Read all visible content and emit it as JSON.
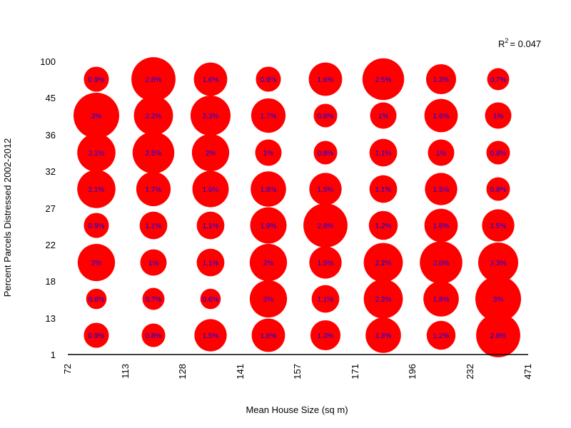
{
  "chart_data": {
    "type": "scatter",
    "subtype": "bubble-grid",
    "title": "",
    "xlabel": "Mean House Size (sq m)",
    "ylabel": "Percent Parcels Distressed 2002-2012",
    "x_ticks": [
      "72",
      "113",
      "128",
      "141",
      "157",
      "171",
      "196",
      "232",
      "471"
    ],
    "y_ticks": [
      "1",
      "13",
      "18",
      "22",
      "27",
      "32",
      "36",
      "45",
      "100"
    ],
    "annotation": {
      "prefix": "R",
      "superscript": "2",
      "suffix": "= 0.047"
    },
    "bubble_color": "#ff0000",
    "label_color": "#0000ff",
    "grid": false,
    "cells": [
      [
        0.9,
        0.6,
        2,
        0.9,
        2.1,
        2.1,
        3,
        0.9
      ],
      [
        0.8,
        0.7,
        1,
        1.1,
        1.7,
        2.5,
        2.2,
        2.8
      ],
      [
        1.5,
        0.6,
        1.1,
        1.1,
        1.9,
        2,
        2.3,
        1.6
      ],
      [
        1.6,
        2,
        2,
        1.9,
        1.8,
        1,
        1.7,
        0.9
      ],
      [
        1.3,
        1.1,
        1.5,
        2.8,
        1.5,
        0.8,
        0.8,
        1.6
      ],
      [
        1.8,
        2.2,
        2.2,
        1.2,
        1.1,
        1.1,
        1,
        2.5
      ],
      [
        1.2,
        1.8,
        2.6,
        1.6,
        1.5,
        1,
        1.6,
        1.3
      ],
      [
        2.8,
        3,
        2.3,
        1.5,
        0.8,
        0.8,
        1,
        0.7
      ]
    ],
    "cell_labels": [
      [
        "0.9%",
        "0.6%",
        "2%",
        "0.9%",
        "2.1%",
        "2.1%",
        "3%",
        "0.9%"
      ],
      [
        "0.8%",
        "0.7%",
        "1%",
        "1.1%",
        "1.7%",
        "2.5%",
        "2.2%",
        "2.8%"
      ],
      [
        "1.5%",
        "0.6%",
        "1.1%",
        "1.1%",
        "1.9%",
        "2%",
        "2.3%",
        "1.6%"
      ],
      [
        "1.6%",
        "2%",
        "2%",
        "1.9%",
        "1.8%",
        "1%",
        "1.7%",
        "0.9%"
      ],
      [
        "1.3%",
        "1.1%",
        "1.5%",
        "2.8%",
        "1.5%",
        "0.8%",
        "0.8%",
        "1.6%"
      ],
      [
        "1.8%",
        "2.2%",
        "2.2%",
        "1.2%",
        "1.1%",
        "1.1%",
        "1%",
        "2.5%"
      ],
      [
        "1.2%",
        "1.8%",
        "2.6%",
        "1.6%",
        "1.5%",
        "1%",
        "1.6%",
        "1.3%"
      ],
      [
        "2.8%",
        "3%",
        "2.3%",
        "1.5%",
        "0.8%",
        "0.8%",
        "1%",
        "0.7%"
      ]
    ]
  }
}
